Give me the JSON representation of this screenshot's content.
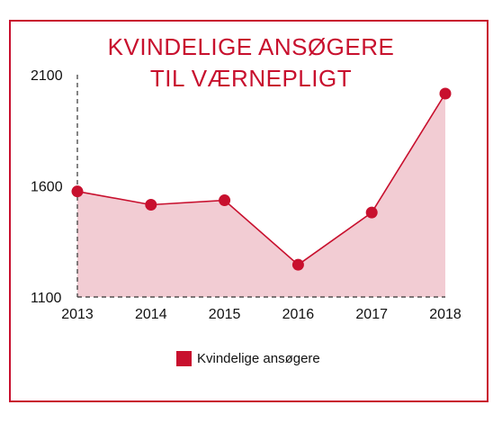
{
  "chart_data": {
    "type": "area",
    "title": [
      "KVINDELIGE ANSØGERE",
      "TIL VÆRNEPLIGT"
    ],
    "x": [
      2013,
      2014,
      2015,
      2016,
      2017,
      2018
    ],
    "xlabels": [
      "2013",
      "2014",
      "2015",
      "2016",
      "2017",
      "2018"
    ],
    "yticks": [
      1100,
      1600,
      2100
    ],
    "ytick_labels": [
      "1100",
      "1600",
      "2100"
    ],
    "ylim": [
      1100,
      2100
    ],
    "series": [
      {
        "name": "Kvindelige ansøgere",
        "values": [
          1575,
          1515,
          1535,
          1245,
          1480,
          2015
        ]
      }
    ],
    "colors": {
      "line": "#c8102e",
      "marker": "#c8102e",
      "fill": "#f2ccd3",
      "frame": "#c8102e"
    },
    "legend_placement": "bottom-center",
    "grid": false
  }
}
